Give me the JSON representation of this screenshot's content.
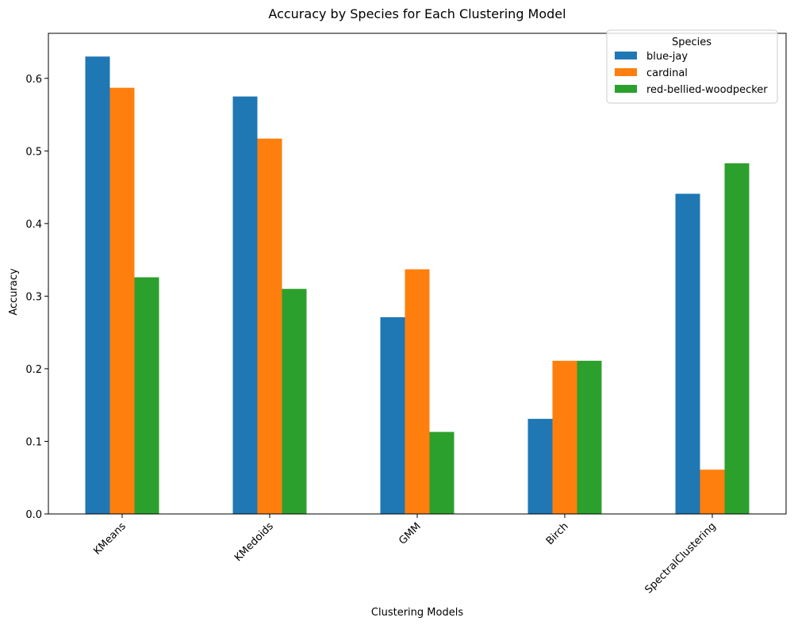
{
  "chart_data": {
    "type": "bar",
    "title": "Accuracy by Species for Each Clustering Model",
    "xlabel": "Clustering Models",
    "ylabel": "Accuracy",
    "categories": [
      "KMeans",
      "KMedoids",
      "GMM",
      "Birch",
      "SpectralClustering"
    ],
    "series": [
      {
        "name": "blue-jay",
        "color": "#1f77b4",
        "values": [
          0.63,
          0.575,
          0.271,
          0.131,
          0.441
        ]
      },
      {
        "name": "cardinal",
        "color": "#ff7f0e",
        "values": [
          0.587,
          0.517,
          0.337,
          0.211,
          0.061
        ]
      },
      {
        "name": "red-bellied-woodpecker",
        "color": "#2ca02c",
        "values": [
          0.326,
          0.31,
          0.113,
          0.211,
          0.483
        ]
      }
    ],
    "ylim": [
      0,
      0.662
    ],
    "yticks": [
      "0.0",
      "0.1",
      "0.2",
      "0.3",
      "0.4",
      "0.5",
      "0.6"
    ],
    "grid": false,
    "legend": {
      "title": "Species",
      "placement": "top-right"
    }
  }
}
